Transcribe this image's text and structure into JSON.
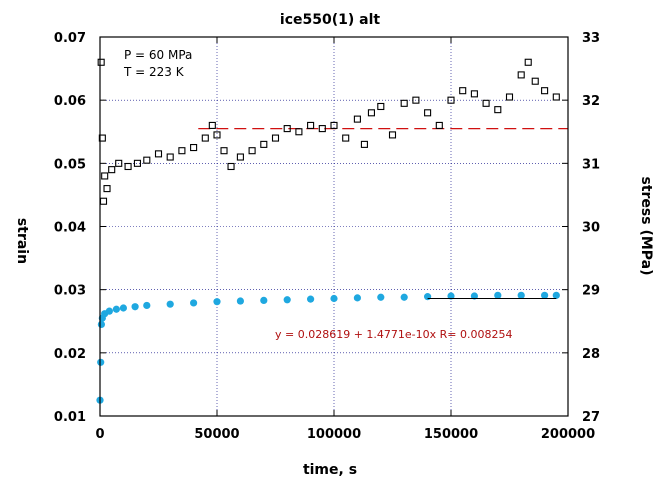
{
  "chart_data": {
    "type": "scatter",
    "title": "ice550(1) alt",
    "xlabel": "time, s",
    "ylabel": "strain",
    "y2label": "stress (MPa)",
    "xlim": [
      0,
      200000
    ],
    "ylim": [
      0.01,
      0.07
    ],
    "y2lim": [
      27,
      33
    ],
    "grid": true,
    "x_ticks": [
      0,
      50000,
      100000,
      150000,
      200000
    ],
    "x_tick_labels": [
      "0",
      "50000",
      "100000",
      "150000",
      "200000"
    ],
    "y_ticks": [
      0.01,
      0.02,
      0.03,
      0.04,
      0.05,
      0.06,
      0.07
    ],
    "y_tick_labels": [
      "0.01",
      "0.02",
      "0.03",
      "0.04",
      "0.05",
      "0.06",
      "0.07"
    ],
    "y2_ticks": [
      27,
      28,
      29,
      30,
      31,
      32,
      33
    ],
    "y2_tick_labels": [
      "27",
      "28",
      "29",
      "30",
      "31",
      "32",
      "33"
    ],
    "annotations": [
      "P = 60 MPa",
      "T = 223 K"
    ],
    "fit_label": "y = 0.028619 + 1.4771e-10x   R= 0.008254",
    "series": [
      {
        "axis": "y2",
        "marker": "open-square",
        "color": "#000000",
        "x": [
          500,
          1000,
          1500,
          2000,
          3000,
          5000,
          8000,
          12000,
          16000,
          20000,
          25000,
          30000,
          35000,
          40000,
          45000,
          48000,
          50000,
          53000,
          56000,
          60000,
          65000,
          70000,
          75000,
          80000,
          85000,
          90000,
          95000,
          100000,
          105000,
          110000,
          113000,
          116000,
          120000,
          125000,
          130000,
          135000,
          140000,
          145000,
          150000,
          155000,
          160000,
          165000,
          170000,
          175000,
          180000,
          183000,
          186000,
          190000,
          195000
        ],
        "y": [
          32.6,
          31.4,
          30.4,
          30.8,
          30.6,
          30.9,
          31.0,
          30.95,
          31.0,
          31.05,
          31.15,
          31.1,
          31.2,
          31.25,
          31.4,
          31.6,
          31.45,
          31.2,
          30.95,
          31.1,
          31.2,
          31.3,
          31.4,
          31.55,
          31.5,
          31.6,
          31.55,
          31.6,
          31.4,
          31.7,
          31.3,
          31.8,
          31.9,
          31.45,
          31.95,
          32.0,
          31.8,
          31.6,
          32.0,
          32.15,
          32.1,
          31.95,
          31.85,
          32.05,
          32.4,
          32.6,
          32.3,
          32.15,
          32.05
        ]
      },
      {
        "axis": "y",
        "marker": "filled-circle",
        "color": "#1fa8e0",
        "x": [
          0,
          300,
          600,
          1000,
          2000,
          4000,
          7000,
          10000,
          15000,
          20000,
          30000,
          40000,
          50000,
          60000,
          70000,
          80000,
          90000,
          100000,
          110000,
          120000,
          130000,
          140000,
          150000,
          160000,
          170000,
          180000,
          190000,
          195000
        ],
        "y": [
          0.0125,
          0.0185,
          0.0245,
          0.0255,
          0.0262,
          0.0266,
          0.0269,
          0.0271,
          0.0273,
          0.0275,
          0.0277,
          0.0279,
          0.0281,
          0.0282,
          0.0283,
          0.0284,
          0.0285,
          0.0286,
          0.0287,
          0.0288,
          0.0288,
          0.0289,
          0.029,
          0.029,
          0.0291,
          0.0291,
          0.0291,
          0.0291
        ]
      }
    ],
    "reference_line": {
      "axis": "y2",
      "y": 31.55,
      "x_start": 42000,
      "x_end": 200000,
      "style": "dashed",
      "color": "#d01010"
    },
    "fit_line": {
      "axis": "y",
      "y": 0.0286,
      "x_start": 140000,
      "x_end": 195000,
      "color": "#000000"
    }
  }
}
